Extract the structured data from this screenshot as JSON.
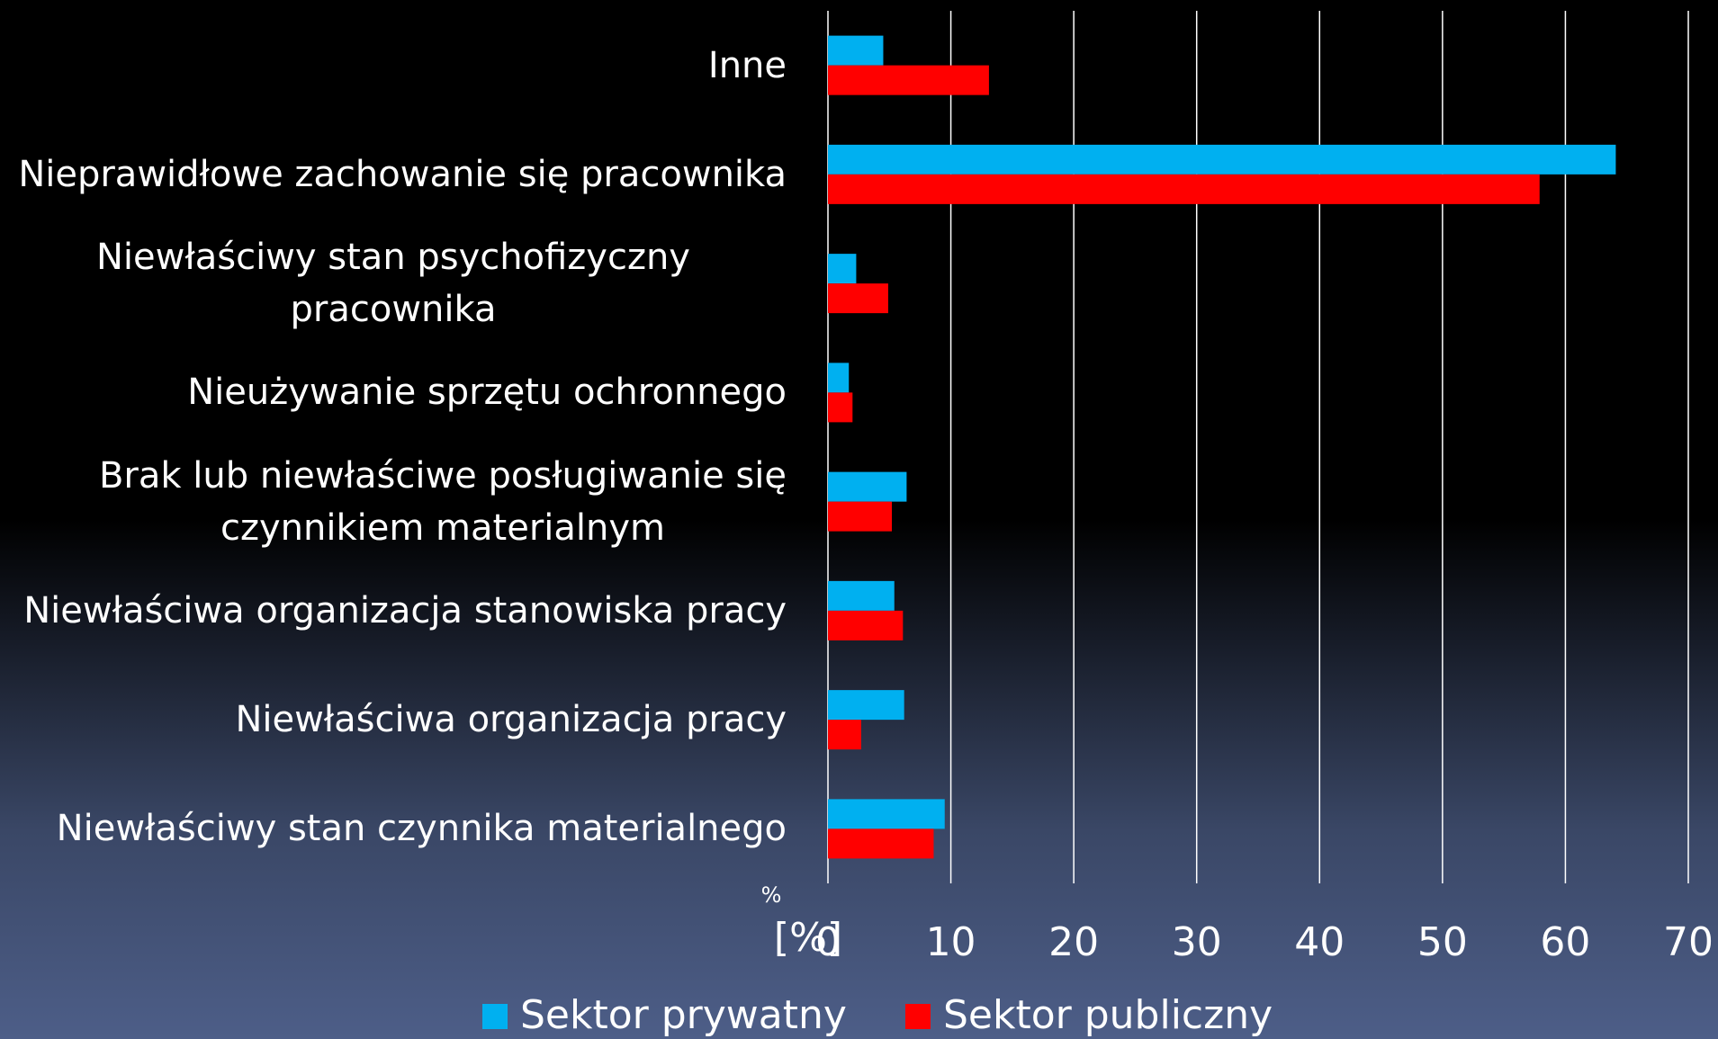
{
  "chart_data": {
    "type": "barh",
    "categories": [
      "Inne",
      "Nieprawidłowe zachowanie się pracownika",
      "Niewłaściwy stan psychofizyczny pracownika",
      "Nieużywanie sprzętu ochronnego",
      "Brak lub niewłaściwe posługiwanie się\nczynnikiem materialnym",
      "Niewłaściwa organizacja stanowiska pracy",
      "Niewłaściwa organizacja pracy",
      "Niewłaściwy stan czynnika materialnego"
    ],
    "series": [
      {
        "name": "Sektor prywatny",
        "color": "#00b0f0",
        "values": [
          4.5,
          64.1,
          2.3,
          1.7,
          6.4,
          5.4,
          6.2,
          9.5
        ]
      },
      {
        "name": "Sektor publiczny",
        "color": "#ff0000",
        "values": [
          13.1,
          57.9,
          4.9,
          2.0,
          5.2,
          6.1,
          2.7,
          8.6
        ]
      }
    ],
    "xlim": [
      0,
      70
    ],
    "xticks": [
      0,
      10,
      20,
      30,
      40,
      50,
      60,
      70
    ],
    "xlabel": "[%]",
    "annotations": [
      "%"
    ],
    "grid": true
  }
}
